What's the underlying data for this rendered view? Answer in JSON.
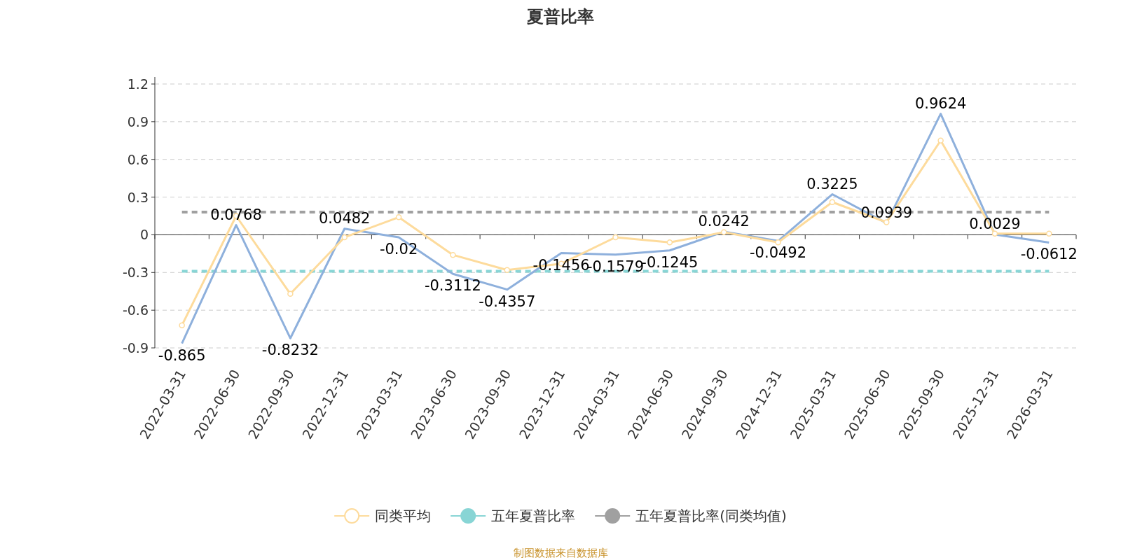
{
  "chart_data": {
    "type": "line",
    "title": "夏普比率",
    "categories": [
      "2022-03-31",
      "2022-06-30",
      "2022-09-30",
      "2022-12-31",
      "2023-03-31",
      "2023-06-30",
      "2023-09-30",
      "2023-12-31",
      "2024-03-31",
      "2024-06-30",
      "2024-09-30",
      "2024-12-31",
      "2025-03-31",
      "2025-06-30",
      "2025-09-30",
      "2025-12-31",
      "2026-03-31"
    ],
    "series": [
      {
        "color": "#8eb0dc",
        "marker": "none",
        "values": [
          -0.865,
          0.0768,
          -0.8232,
          0.0482,
          -0.02,
          -0.3112,
          -0.4357,
          -0.1456,
          -0.1579,
          -0.1245,
          0.0242,
          -0.0492,
          0.3225,
          0.0939,
          0.9624,
          0.0029,
          -0.0612
        ],
        "value_labels": [
          "-0.865",
          "0.0768",
          "-0.8232",
          "0.0482",
          "-0.02",
          "-0.3112",
          "-0.4357",
          "-0.1456",
          "-0.1579",
          "-0.1245",
          "0.0242",
          "-0.0492",
          "0.3225",
          "0.0939",
          "0.9624",
          "0.0029",
          "-0.0612"
        ]
      },
      {
        "name": "同类平均",
        "color": "#fddb9c",
        "marker": "circle",
        "values": [
          -0.72,
          0.15,
          -0.47,
          -0.02,
          0.14,
          -0.16,
          -0.28,
          -0.23,
          -0.02,
          -0.06,
          0.02,
          -0.06,
          0.26,
          0.1,
          0.75,
          0.01,
          0.01
        ]
      }
    ],
    "ref_lines": [
      {
        "axis": "y",
        "value": -0.29,
        "label": "五年夏普比率",
        "color": "#88d5d5",
        "line_style": "dashed"
      },
      {
        "axis": "y",
        "value": 0.18,
        "label": "五年夏普比率(同类均值)",
        "color": "#a0a0a0",
        "line_style": "dashed"
      }
    ],
    "ylim": [
      -0.9,
      1.2
    ],
    "yticks": [
      -0.9,
      -0.6,
      -0.3,
      0,
      0.3,
      0.6,
      0.9,
      1.2
    ],
    "grid": "y",
    "legend": "bottom",
    "annotations": [
      "制图数据来自数据库"
    ]
  }
}
